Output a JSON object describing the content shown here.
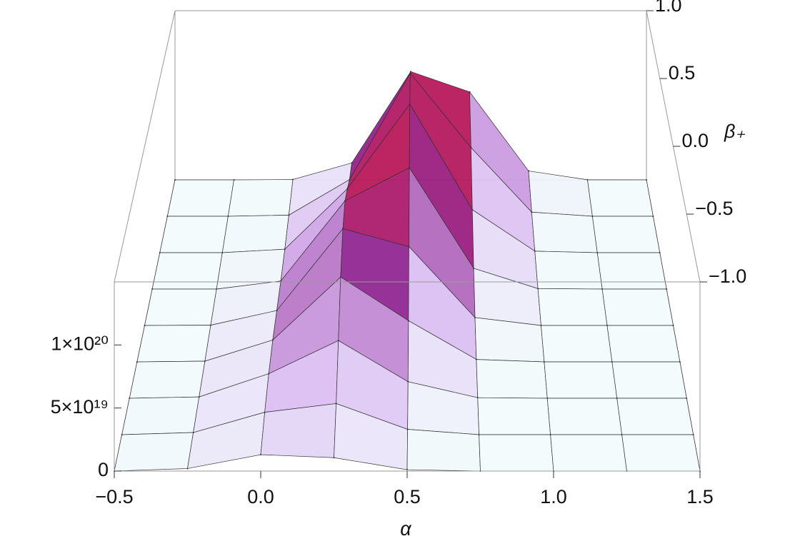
{
  "chart_data": {
    "type": "surface",
    "xlabel": "α",
    "ylabel": "β₊",
    "x": [
      -0.5,
      -0.25,
      0,
      0.25,
      0.5,
      0.75,
      1,
      1.25,
      1.5
    ],
    "y": [
      -1,
      -0.75,
      -0.5,
      -0.25,
      0,
      0.25,
      0.5,
      0.75,
      1
    ],
    "z": [
      [
        4e+16,
        2e+18,
        1.3e+19,
        1.06e+19,
        1.1e+18,
        1e+16,
        0,
        0,
        0
      ],
      [
        0,
        1.7e+18,
        1.8e+19,
        2.5e+19,
        4.3e+18,
        0,
        0,
        0,
        0
      ],
      [
        0,
        1.1e+18,
        2e+19,
        4.7e+19,
        1.35e+19,
        4.8e+17,
        0,
        0,
        0
      ],
      [
        0,
        5.8e+17,
        1.8e+19,
        7e+19,
        3.4e+19,
        2e+18,
        0,
        0,
        0
      ],
      [
        0,
        2.4e+17,
        1.25e+19,
        8.1e+19,
        6.6e+19,
        6.6e+18,
        0,
        0,
        0
      ],
      [
        0,
        0,
        6.8e+18,
        7.5e+19,
        1.03e+20,
        1.76e+19,
        3.7e+17,
        0,
        0
      ],
      [
        0,
        0,
        3e+18,
        5.5e+19,
        1.28e+20,
        3.7e+19,
        1.3e+18,
        0,
        0
      ],
      [
        0,
        0,
        1e+18,
        3.2e+19,
        1.25e+20,
        6e+19,
        3.6e+18,
        0,
        0
      ],
      [
        0,
        0,
        2.9e+17,
        1.5e+19,
        9.6e+19,
        7.8e+19,
        7.9e+18,
        1e+17,
        0
      ]
    ],
    "xlim": [
      -0.5,
      1.5
    ],
    "ylim": [
      -1,
      1
    ],
    "zlim": [
      0,
      1.5e+20
    ],
    "xticks": [
      {
        "value": -0.5,
        "label": "−0.5"
      },
      {
        "value": 0,
        "label": "0.0"
      },
      0.5,
      {
        "value": 1,
        "label": "1.0"
      },
      1.5
    ],
    "yticks": [
      {
        "value": -1,
        "label": "−1.0"
      },
      {
        "value": -0.5,
        "label": "−0.5"
      },
      {
        "value": 0,
        "label": "0.0"
      },
      0.5,
      {
        "value": 1,
        "label": "1.0"
      }
    ],
    "zticks": [
      0,
      {
        "value": 5e+19,
        "label": "5×10¹⁹"
      },
      {
        "value": 1e+20,
        "label": "1×10²⁰"
      }
    ],
    "colormap": [
      "#f2fbfc",
      "#d6b3f0",
      "#8c1c8c",
      "#c0104a",
      "#ff1010"
    ]
  }
}
